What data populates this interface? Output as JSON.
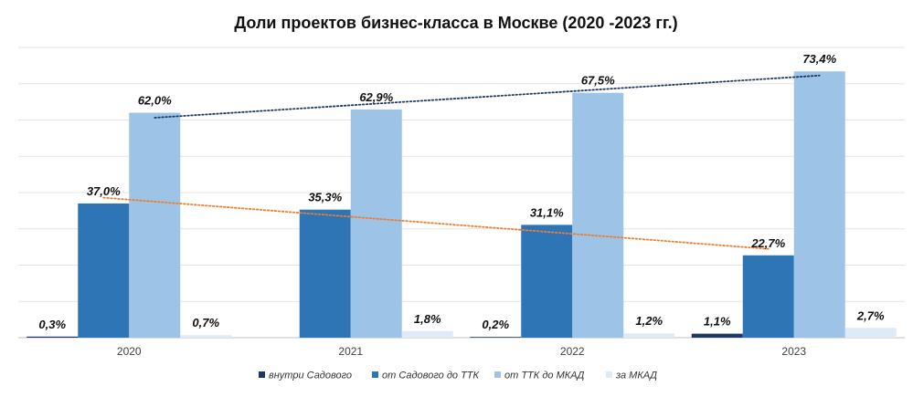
{
  "chart_data": {
    "type": "bar",
    "title": "Доли проектов бизнес-класса в Москве (2020 -2023 гг.)",
    "categories": [
      "2020",
      "2021",
      "2022",
      "2023"
    ],
    "ylim": [
      0,
      80
    ],
    "grid": true,
    "legend_position": "bottom",
    "series": [
      {
        "name": "внутри Садового",
        "color": "#1F3864",
        "values": [
          0.3,
          0,
          0.2,
          1.1
        ],
        "labels": [
          "0,3%",
          "",
          "0,2%",
          "1,1%"
        ]
      },
      {
        "name": "от Садового до ТТК",
        "color": "#2E75B6",
        "values": [
          37.0,
          35.3,
          31.1,
          22.7
        ],
        "labels": [
          "37,0%",
          "35,3%",
          "31,1%",
          "22,7%"
        ]
      },
      {
        "name": "от ТТК до МКАД",
        "color": "#9DC3E6",
        "values": [
          62.0,
          62.9,
          67.5,
          73.4
        ],
        "labels": [
          "62,0%",
          "62,9%",
          "67,5%",
          "73,4%"
        ]
      },
      {
        "name": "за МКАД",
        "color": "#DEEBF7",
        "values": [
          0.7,
          1.8,
          1.2,
          2.7
        ],
        "labels": [
          "0,7%",
          "1,8%",
          "1,2%",
          "2,7%"
        ]
      }
    ],
    "trendlines": [
      {
        "series": "от ТТК до МКАД",
        "color": "#1F3864",
        "style": "dotted"
      },
      {
        "series": "от Садового до ТТК",
        "color": "#ED7D31",
        "style": "dotted"
      }
    ]
  }
}
